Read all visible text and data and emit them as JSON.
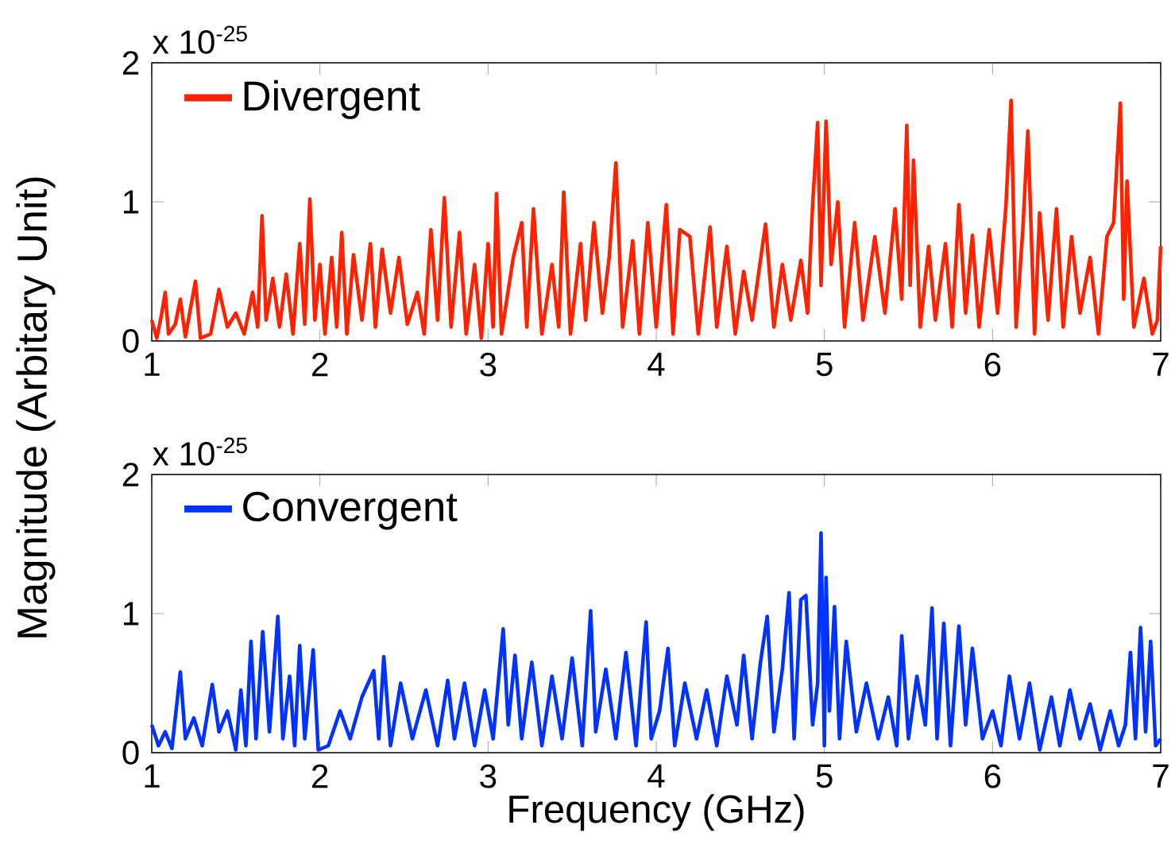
{
  "chart_data": [
    {
      "type": "line",
      "ylabel": "Magnitude (Arbitary Unit)",
      "annotations": [
        "x 10$^{-25}$"
      ],
      "xlim": [
        1,
        7
      ],
      "ylim": [
        0,
        2
      ],
      "xticks": [
        1,
        2,
        3,
        4,
        5,
        6,
        7
      ],
      "yticks": [
        0,
        1,
        2
      ],
      "legend": "top left",
      "line_style": "solid",
      "x": [
        1.0,
        1.03,
        1.06,
        1.08,
        1.1,
        1.14,
        1.17,
        1.2,
        1.26,
        1.29,
        1.35,
        1.4,
        1.45,
        1.5,
        1.55,
        1.6,
        1.63,
        1.656,
        1.68,
        1.72,
        1.76,
        1.8,
        1.84,
        1.88,
        1.91,
        1.94,
        1.97,
        2.0,
        2.03,
        2.07,
        2.1,
        2.13,
        2.16,
        2.2,
        2.25,
        2.3,
        2.33,
        2.37,
        2.42,
        2.47,
        2.52,
        2.58,
        2.62,
        2.66,
        2.7,
        2.74,
        2.78,
        2.83,
        2.87,
        2.92,
        2.96,
        3.0,
        3.03,
        3.05,
        3.08,
        3.15,
        3.2,
        3.23,
        3.27,
        3.32,
        3.38,
        3.42,
        3.45,
        3.49,
        3.55,
        3.58,
        3.63,
        3.68,
        3.72,
        3.76,
        3.8,
        3.86,
        3.9,
        3.95,
        4.0,
        4.06,
        4.1,
        4.14,
        4.2,
        4.25,
        4.32,
        4.36,
        4.42,
        4.47,
        4.52,
        4.57,
        4.65,
        4.7,
        4.75,
        4.8,
        4.86,
        4.9,
        4.93,
        4.96,
        4.98,
        5.01,
        5.04,
        5.08,
        5.12,
        5.18,
        5.23,
        5.3,
        5.36,
        5.42,
        5.46,
        5.49,
        5.51,
        5.53,
        5.57,
        5.62,
        5.66,
        5.72,
        5.76,
        5.8,
        5.84,
        5.88,
        5.92,
        5.98,
        6.03,
        6.08,
        6.11,
        6.14,
        6.18,
        6.21,
        6.25,
        6.28,
        6.33,
        6.38,
        6.42,
        6.47,
        6.52,
        6.58,
        6.63,
        6.68,
        6.72,
        6.76,
        6.78,
        6.8,
        6.84,
        6.9,
        6.95,
        6.98,
        7.0
      ],
      "series": [
        {
          "name": "Divergent",
          "color": "#ff2200",
          "values": [
            0.15,
            0.02,
            0.2,
            0.35,
            0.05,
            0.12,
            0.3,
            0.03,
            0.43,
            0.02,
            0.05,
            0.37,
            0.1,
            0.2,
            0.05,
            0.35,
            0.1,
            0.9,
            0.15,
            0.45,
            0.1,
            0.48,
            0.05,
            0.7,
            0.12,
            1.02,
            0.15,
            0.55,
            0.05,
            0.6,
            0.1,
            0.78,
            0.05,
            0.62,
            0.15,
            0.7,
            0.1,
            0.66,
            0.2,
            0.6,
            0.12,
            0.35,
            0.05,
            0.8,
            0.15,
            1.03,
            0.1,
            0.78,
            0.05,
            0.55,
            0.02,
            0.7,
            0.1,
            1.06,
            0.05,
            0.6,
            0.85,
            0.1,
            0.95,
            0.05,
            0.55,
            0.1,
            1.07,
            0.05,
            0.7,
            0.15,
            0.85,
            0.2,
            0.6,
            1.28,
            0.1,
            0.72,
            0.05,
            0.85,
            0.1,
            0.98,
            0.05,
            0.8,
            0.75,
            0.05,
            0.82,
            0.1,
            0.68,
            0.05,
            0.5,
            0.15,
            0.84,
            0.1,
            0.55,
            0.15,
            0.58,
            0.2,
            0.98,
            1.57,
            0.4,
            1.58,
            0.55,
            1.0,
            0.1,
            0.85,
            0.15,
            0.75,
            0.2,
            0.95,
            0.3,
            1.55,
            0.4,
            1.3,
            0.1,
            0.68,
            0.15,
            0.7,
            0.1,
            0.98,
            0.2,
            0.76,
            0.1,
            0.8,
            0.2,
            0.98,
            1.73,
            0.1,
            0.8,
            1.51,
            0.05,
            0.92,
            0.15,
            0.95,
            0.1,
            0.75,
            0.2,
            0.6,
            0.05,
            0.75,
            0.85,
            1.71,
            0.3,
            1.15,
            0.1,
            0.45,
            0.05,
            0.15,
            0.68
          ]
        }
      ]
    },
    {
      "type": "line",
      "xlabel": "Frequency (GHz)",
      "annotations": [
        "x 10$^{-25}$"
      ],
      "xlim": [
        1,
        7
      ],
      "ylim": [
        0,
        2
      ],
      "xticks": [
        1,
        2,
        3,
        4,
        5,
        6,
        7
      ],
      "yticks": [
        0,
        1,
        2
      ],
      "legend": "top left",
      "line_style": "solid",
      "x": [
        1.0,
        1.04,
        1.08,
        1.12,
        1.17,
        1.2,
        1.25,
        1.3,
        1.36,
        1.4,
        1.45,
        1.5,
        1.53,
        1.56,
        1.59,
        1.62,
        1.66,
        1.7,
        1.75,
        1.78,
        1.82,
        1.85,
        1.88,
        1.91,
        1.96,
        1.99,
        2.05,
        2.12,
        2.18,
        2.25,
        2.32,
        2.35,
        2.38,
        2.42,
        2.48,
        2.55,
        2.63,
        2.7,
        2.76,
        2.8,
        2.86,
        2.92,
        2.98,
        3.03,
        3.09,
        3.12,
        3.16,
        3.2,
        3.26,
        3.32,
        3.38,
        3.44,
        3.5,
        3.56,
        3.61,
        3.64,
        3.7,
        3.76,
        3.82,
        3.88,
        3.94,
        3.97,
        4.02,
        4.07,
        4.11,
        4.17,
        4.24,
        4.3,
        4.36,
        4.42,
        4.48,
        4.52,
        4.57,
        4.62,
        4.66,
        4.7,
        4.75,
        4.79,
        4.82,
        4.86,
        4.89,
        4.93,
        4.96,
        4.98,
        5.0,
        5.01,
        5.03,
        5.06,
        5.09,
        5.13,
        5.19,
        5.25,
        5.32,
        5.38,
        5.43,
        5.46,
        5.5,
        5.55,
        5.6,
        5.64,
        5.67,
        5.71,
        5.75,
        5.8,
        5.84,
        5.88,
        5.94,
        6.0,
        6.05,
        6.1,
        6.16,
        6.22,
        6.28,
        6.35,
        6.4,
        6.46,
        6.52,
        6.58,
        6.64,
        6.7,
        6.75,
        6.79,
        6.82,
        6.85,
        6.88,
        6.91,
        6.94,
        6.97,
        7.0
      ],
      "series": [
        {
          "name": "Convergent",
          "color": "#0033ff",
          "values": [
            0.2,
            0.05,
            0.15,
            0.03,
            0.58,
            0.1,
            0.25,
            0.05,
            0.49,
            0.15,
            0.3,
            0.02,
            0.45,
            0.05,
            0.8,
            0.1,
            0.87,
            0.15,
            0.98,
            0.1,
            0.55,
            0.05,
            0.77,
            0.1,
            0.74,
            0.02,
            0.05,
            0.3,
            0.1,
            0.4,
            0.59,
            0.1,
            0.69,
            0.05,
            0.5,
            0.1,
            0.45,
            0.05,
            0.52,
            0.1,
            0.5,
            0.05,
            0.45,
            0.1,
            0.89,
            0.2,
            0.7,
            0.1,
            0.65,
            0.05,
            0.55,
            0.1,
            0.68,
            0.05,
            1.02,
            0.15,
            0.6,
            0.1,
            0.72,
            0.05,
            0.94,
            0.1,
            0.3,
            0.75,
            0.05,
            0.5,
            0.1,
            0.45,
            0.05,
            0.55,
            0.2,
            0.7,
            0.1,
            0.65,
            0.98,
            0.15,
            0.6,
            1.15,
            0.1,
            1.1,
            1.13,
            0.2,
            0.5,
            1.58,
            0.05,
            1.26,
            0.3,
            1.05,
            0.1,
            0.8,
            0.15,
            0.5,
            0.1,
            0.4,
            0.05,
            0.84,
            0.1,
            0.55,
            0.2,
            1.04,
            0.1,
            0.93,
            0.05,
            0.91,
            0.2,
            0.75,
            0.1,
            0.3,
            0.05,
            0.55,
            0.1,
            0.5,
            0.02,
            0.4,
            0.05,
            0.45,
            0.1,
            0.35,
            0.02,
            0.3,
            0.05,
            0.2,
            0.72,
            0.1,
            0.9,
            0.15,
            0.8,
            0.05,
            0.1
          ]
        }
      ]
    }
  ]
}
